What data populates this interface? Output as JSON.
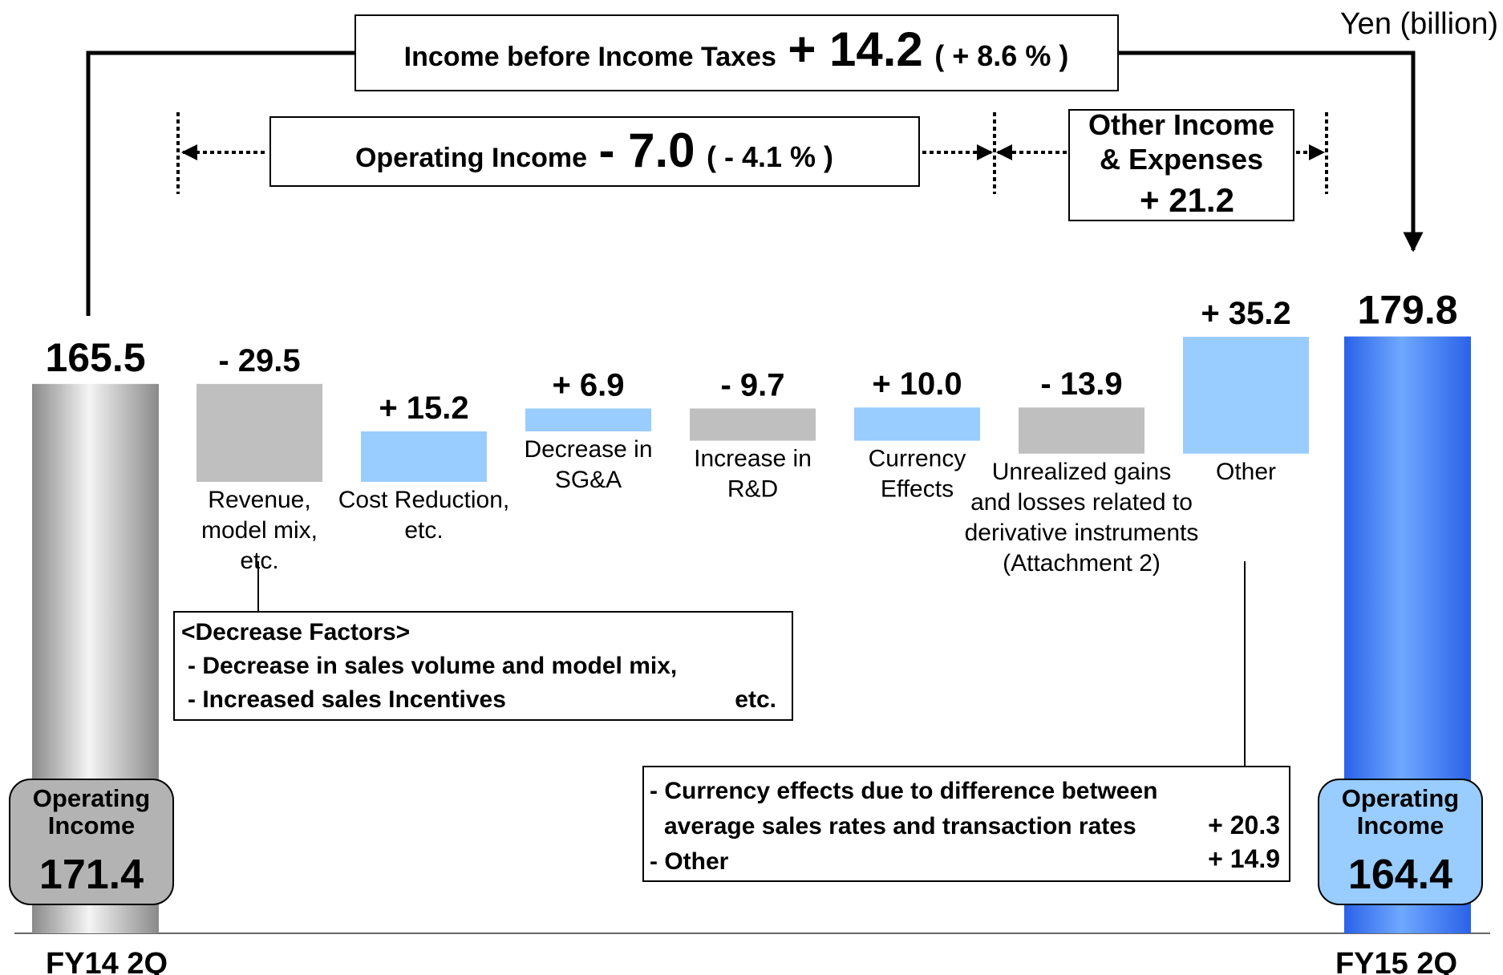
{
  "chart_data": {
    "type": "waterfall",
    "unit_label": "Yen (billion)",
    "start": {
      "label": "FY14 2Q",
      "value": 165.5,
      "box_title": [
        "Operating",
        "Income"
      ],
      "box_value": "171.4"
    },
    "end": {
      "label": "FY15 2Q",
      "value": 179.8,
      "box_title": [
        "Operating",
        "Income"
      ],
      "box_value": "164.4"
    },
    "categories": [
      [
        "Revenue,",
        "model mix,",
        "etc."
      ],
      [
        "Cost Reduction,",
        "etc."
      ],
      [
        "Decrease in",
        "SG&A"
      ],
      [
        "Increase in",
        "R&D"
      ],
      [
        "Currency",
        "Effects"
      ],
      [
        "Unrealized gains",
        "and losses related to",
        "derivative instruments",
        "(Attachment 2)"
      ],
      [
        "Other"
      ]
    ],
    "values": [
      -29.5,
      15.2,
      6.9,
      -9.7,
      10.0,
      -13.9,
      35.2
    ],
    "value_labels": [
      "- 29.5",
      "+ 15.2",
      "+ 6.9",
      "- 9.7",
      "+ 10.0",
      "- 13.9",
      "+ 35.2"
    ],
    "colors": {
      "increase": "#99ccff",
      "decrease": "#bfbfbf"
    },
    "ylim": [
      0,
      200
    ],
    "brackets": {
      "income_before_taxes": {
        "label": "Income before Income Taxes",
        "change": "+ 14.2",
        "pct": "( + 8.6 % )"
      },
      "operating_income": {
        "label": "Operating Income",
        "change": "- 7.0",
        "pct": "( - 4.1 % )"
      },
      "other_income": {
        "label": [
          "Other Income",
          "& Expenses"
        ],
        "change": "+ 21.2"
      }
    },
    "notes": {
      "decrease": {
        "title": "<Decrease Factors>",
        "lines": [
          "- Decrease  in sales volume and model mix,",
          "- Increased sales Incentives"
        ],
        "suffix": "etc."
      },
      "other": {
        "rows": [
          {
            "text": [
              "- Currency effects due to difference between",
              "average sales rates and transaction rates"
            ],
            "value": "+ 20.3"
          },
          {
            "text": [
              "- Other"
            ],
            "value": "+ 14.9"
          }
        ]
      }
    }
  }
}
